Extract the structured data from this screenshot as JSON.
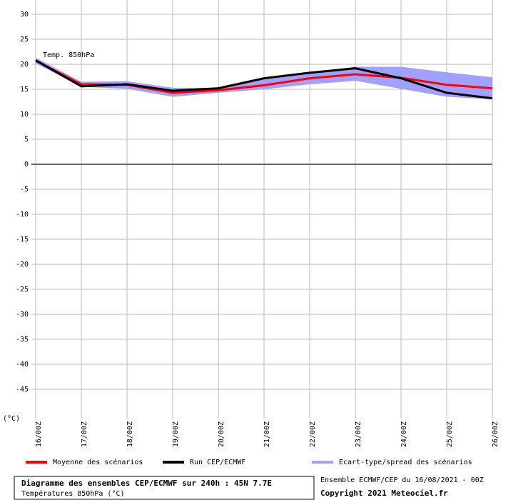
{
  "chart_data": {
    "type": "line",
    "annotation": "Temp. 850hPa",
    "y_unit": "(°C)",
    "categories": [
      "16/00Z",
      "17/00Z",
      "18/00Z",
      "19/00Z",
      "20/00Z",
      "21/00Z",
      "22/00Z",
      "23/00Z",
      "24/00Z",
      "25/00Z",
      "26/00Z"
    ],
    "series": [
      {
        "name": "Moyenne des scénarios",
        "color": "#ff0000",
        "values": [
          20.7,
          16.0,
          15.9,
          14.3,
          14.8,
          15.8,
          17.2,
          18.0,
          17.3,
          15.9,
          15.2
        ]
      },
      {
        "name": "Run CEP/ECMWF",
        "color": "#000000",
        "values": [
          20.8,
          15.6,
          16.0,
          14.7,
          15.2,
          17.2,
          18.3,
          19.2,
          17.2,
          14.3,
          13.2
        ]
      },
      {
        "name": "Ecart-type/spread des scénarios",
        "color": "#a0a0ff",
        "upper": [
          21.3,
          16.5,
          16.6,
          15.3,
          15.3,
          17.0,
          18.4,
          19.5,
          19.5,
          18.4,
          17.4
        ],
        "lower": [
          20.2,
          15.5,
          15.1,
          13.5,
          14.3,
          15.0,
          16.0,
          16.7,
          15.1,
          13.5,
          13.0
        ]
      }
    ],
    "ylim": [
      -50,
      32
    ],
    "yticks": [
      30,
      25,
      20,
      15,
      10,
      5,
      0,
      -5,
      -10,
      -15,
      -20,
      -25,
      -30,
      -35,
      -40,
      -45
    ],
    "grid": true,
    "footer": {
      "title": "Diagramme des ensembles CEP/ECMWF sur 240h : 45N 7.7E",
      "subtitle": "Températures 850hPa (°C)",
      "run": "Ensemble ECMWF/CEP du 16/08/2021 - 00Z",
      "copyright": "Copyright 2021 Meteociel.fr"
    }
  }
}
